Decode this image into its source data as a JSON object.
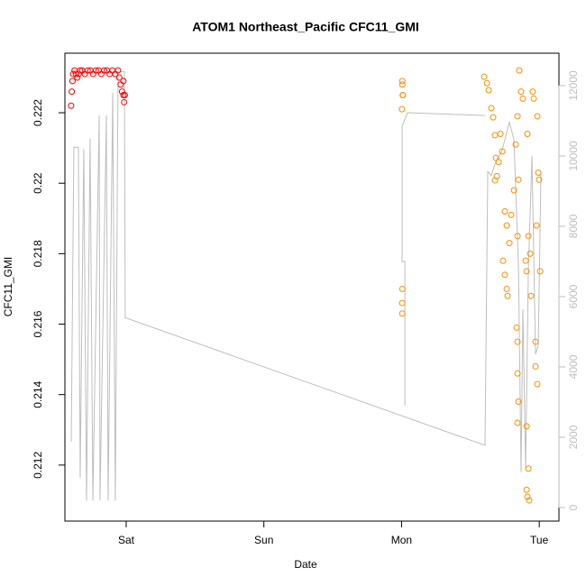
{
  "chart_data": {
    "type": "scatter",
    "title": "ATOM1 Northeast_Pacific CFC11_GMI",
    "x_label": "Date",
    "y_label": "CFC11_GMI",
    "xlim": [
      -0.445,
      3.143
    ],
    "xticks": [
      {
        "value": 0,
        "label": "Sat"
      },
      {
        "value": 1,
        "label": "Sun"
      },
      {
        "value": 2,
        "label": "Mon"
      },
      {
        "value": 3,
        "label": "Tue"
      }
    ],
    "ylim": [
      0.21041,
      0.22369
    ],
    "yticks": [
      0.212,
      0.214,
      0.216,
      0.218,
      0.22,
      0.222
    ],
    "y2lim": [
      -385,
      12923
    ],
    "y2ticks": [
      0,
      2000,
      4000,
      6000,
      8000,
      10000,
      12000
    ],
    "y2_color": "#bebebe",
    "series": [
      {
        "type": "points",
        "color": "#ff0000",
        "x": [
          -0.4,
          -0.395,
          -0.39,
          -0.385,
          -0.375,
          -0.365,
          -0.355,
          -0.345,
          -0.335,
          -0.32,
          -0.3,
          -0.28,
          -0.26,
          -0.24,
          -0.22,
          -0.2,
          -0.18,
          -0.16,
          -0.14,
          -0.12,
          -0.1,
          -0.08,
          -0.06,
          -0.05,
          -0.04,
          -0.03,
          -0.02,
          -0.015,
          -0.01,
          -0.02
        ],
        "values": [
          0.2222,
          0.2226,
          0.2229,
          0.2231,
          0.2232,
          0.2231,
          0.223,
          0.2231,
          0.2232,
          0.2232,
          0.2231,
          0.2232,
          0.2232,
          0.2231,
          0.2232,
          0.2232,
          0.2231,
          0.2232,
          0.2232,
          0.2231,
          0.2232,
          0.2231,
          0.2232,
          0.223,
          0.2228,
          0.2226,
          0.2225,
          0.2223,
          0.2225,
          0.2229
        ]
      },
      {
        "type": "points",
        "color": "#ff8c00",
        "x": [
          2.005,
          2.006,
          2.008,
          2.01,
          2.003,
          2.006,
          2.004,
          2.005,
          2.6,
          2.62,
          2.633,
          2.652,
          2.665,
          2.678,
          2.685,
          2.678,
          2.692,
          2.705,
          2.718,
          2.731,
          2.75,
          2.764,
          2.783,
          2.796,
          2.816,
          2.737,
          2.75,
          2.764,
          2.77,
          2.829,
          2.842,
          2.855,
          2.868,
          2.881,
          2.849,
          2.842,
          2.836,
          2.842,
          2.842,
          2.849,
          2.842,
          2.908,
          2.921,
          2.908,
          2.914,
          2.927,
          2.914,
          2.901,
          2.908,
          2.921,
          2.934,
          2.94,
          2.953,
          2.96,
          2.973,
          2.986,
          2.973,
          2.993,
          2.98,
          3.006,
          2.999,
          2.986
        ],
        "values": [
          0.2229,
          0.2228,
          0.2225,
          0.2225,
          0.2221,
          0.217,
          0.2166,
          0.2163,
          0.22302,
          0.22284,
          0.22264,
          0.22213,
          0.22187,
          0.22136,
          0.22072,
          0.22008,
          0.2202,
          0.2206,
          0.2214,
          0.2209,
          0.2192,
          0.2188,
          0.2183,
          0.2191,
          0.2198,
          0.2178,
          0.2174,
          0.217,
          0.2168,
          0.2211,
          0.2219,
          0.2232,
          0.2226,
          0.2224,
          0.2201,
          0.2185,
          0.2159,
          0.2155,
          0.2146,
          0.2138,
          0.2132,
          0.2131,
          0.2119,
          0.2113,
          0.2111,
          0.211,
          0.2214,
          0.2178,
          0.2175,
          0.2185,
          0.218,
          0.2168,
          0.2226,
          0.2224,
          0.2148,
          0.2143,
          0.2155,
          0.2203,
          0.2188,
          0.2175,
          0.2201,
          0.2219
        ]
      },
      {
        "type": "line",
        "axis": "y2",
        "color": "#bebebe",
        "x": [
          -0.399,
          -0.38,
          -0.347,
          -0.334,
          -0.308,
          -0.288,
          -0.262,
          -0.242,
          -0.196,
          -0.19,
          -0.144,
          -0.131,
          -0.098,
          -0.079,
          -0.059,
          -0.013,
          -0.007,
          2.606,
          2.626,
          2.652,
          2.672,
          2.698,
          2.724,
          2.75,
          2.783,
          2.816,
          2.849,
          2.868,
          2.881,
          2.901,
          2.921,
          2.947,
          2.973,
          2.993,
          3.012,
          null,
          2.024,
          2.024,
          2.004,
          2.004,
          2.043,
          2.606
        ],
        "values": [
          1870,
          10250,
          10250,
          850,
          10200,
          200,
          10500,
          200,
          11150,
          200,
          11150,
          200,
          11800,
          200,
          12400,
          12400,
          5400,
          1770,
          9560,
          9440,
          9690,
          9950,
          10080,
          10460,
          10970,
          10460,
          6870,
          1000,
          5640,
          1100,
          6770,
          10000,
          4360,
          4620,
          9490,
          null,
          2900,
          7000,
          7000,
          10850,
          11230,
          11150
        ]
      }
    ]
  }
}
